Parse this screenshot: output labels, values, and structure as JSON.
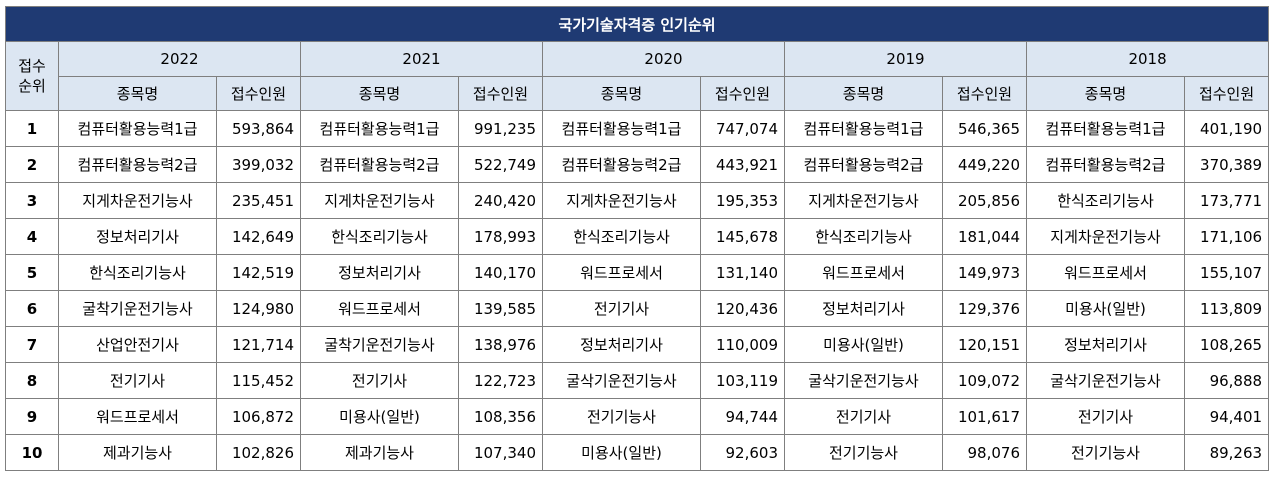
{
  "title": "국가기술자격증 인기순위",
  "rank_header": [
    "접수",
    "순위"
  ],
  "name_col_label": "종목명",
  "count_col_label": "접수인원",
  "years": [
    "2022",
    "2021",
    "2020",
    "2019",
    "2018"
  ],
  "rows": [
    {
      "rank": "1",
      "cells": [
        {
          "name": "컴퓨터활용능력1급",
          "count": "593,864"
        },
        {
          "name": "컴퓨터활용능력1급",
          "count": "991,235"
        },
        {
          "name": "컴퓨터활용능력1급",
          "count": "747,074"
        },
        {
          "name": "컴퓨터활용능력1급",
          "count": "546,365"
        },
        {
          "name": "컴퓨터활용능력1급",
          "count": "401,190"
        }
      ]
    },
    {
      "rank": "2",
      "cells": [
        {
          "name": "컴퓨터활용능력2급",
          "count": "399,032"
        },
        {
          "name": "컴퓨터활용능력2급",
          "count": "522,749"
        },
        {
          "name": "컴퓨터활용능력2급",
          "count": "443,921"
        },
        {
          "name": "컴퓨터활용능력2급",
          "count": "449,220"
        },
        {
          "name": "컴퓨터활용능력2급",
          "count": "370,389"
        }
      ]
    },
    {
      "rank": "3",
      "cells": [
        {
          "name": "지게차운전기능사",
          "count": "235,451"
        },
        {
          "name": "지게차운전기능사",
          "count": "240,420"
        },
        {
          "name": "지게차운전기능사",
          "count": "195,353"
        },
        {
          "name": "지게차운전기능사",
          "count": "205,856"
        },
        {
          "name": "한식조리기능사",
          "count": "173,771"
        }
      ]
    },
    {
      "rank": "4",
      "cells": [
        {
          "name": "정보처리기사",
          "count": "142,649"
        },
        {
          "name": "한식조리기능사",
          "count": "178,993"
        },
        {
          "name": "한식조리기능사",
          "count": "145,678"
        },
        {
          "name": "한식조리기능사",
          "count": "181,044"
        },
        {
          "name": "지게차운전기능사",
          "count": "171,106"
        }
      ]
    },
    {
      "rank": "5",
      "cells": [
        {
          "name": "한식조리기능사",
          "count": "142,519"
        },
        {
          "name": "정보처리기사",
          "count": "140,170"
        },
        {
          "name": "워드프로세서",
          "count": "131,140"
        },
        {
          "name": "워드프로세서",
          "count": "149,973"
        },
        {
          "name": "워드프로세서",
          "count": "155,107"
        }
      ]
    },
    {
      "rank": "6",
      "cells": [
        {
          "name": "굴착기운전기능사",
          "count": "124,980"
        },
        {
          "name": "워드프로세서",
          "count": "139,585"
        },
        {
          "name": "전기기사",
          "count": "120,436"
        },
        {
          "name": "정보처리기사",
          "count": "129,376"
        },
        {
          "name": "미용사(일반)",
          "count": "113,809"
        }
      ]
    },
    {
      "rank": "7",
      "cells": [
        {
          "name": "산업안전기사",
          "count": "121,714"
        },
        {
          "name": "굴착기운전기능사",
          "count": "138,976"
        },
        {
          "name": "정보처리기사",
          "count": "110,009"
        },
        {
          "name": "미용사(일반)",
          "count": "120,151"
        },
        {
          "name": "정보처리기사",
          "count": "108,265"
        }
      ]
    },
    {
      "rank": "8",
      "cells": [
        {
          "name": "전기기사",
          "count": "115,452"
        },
        {
          "name": "전기기사",
          "count": "122,723"
        },
        {
          "name": "굴삭기운전기능사",
          "count": "103,119"
        },
        {
          "name": "굴삭기운전기능사",
          "count": "109,072"
        },
        {
          "name": "굴삭기운전기능사",
          "count": "96,888"
        }
      ]
    },
    {
      "rank": "9",
      "cells": [
        {
          "name": "워드프로세서",
          "count": "106,872"
        },
        {
          "name": "미용사(일반)",
          "count": "108,356"
        },
        {
          "name": "전기기능사",
          "count": "94,744"
        },
        {
          "name": "전기기사",
          "count": "101,617"
        },
        {
          "name": "전기기사",
          "count": "94,401"
        }
      ]
    },
    {
      "rank": "10",
      "cells": [
        {
          "name": "제과기능사",
          "count": "102,826"
        },
        {
          "name": "제과기능사",
          "count": "107,340"
        },
        {
          "name": "미용사(일반)",
          "count": "92,603"
        },
        {
          "name": "전기기능사",
          "count": "98,076"
        },
        {
          "name": "전기기능사",
          "count": "89,263"
        }
      ]
    }
  ]
}
